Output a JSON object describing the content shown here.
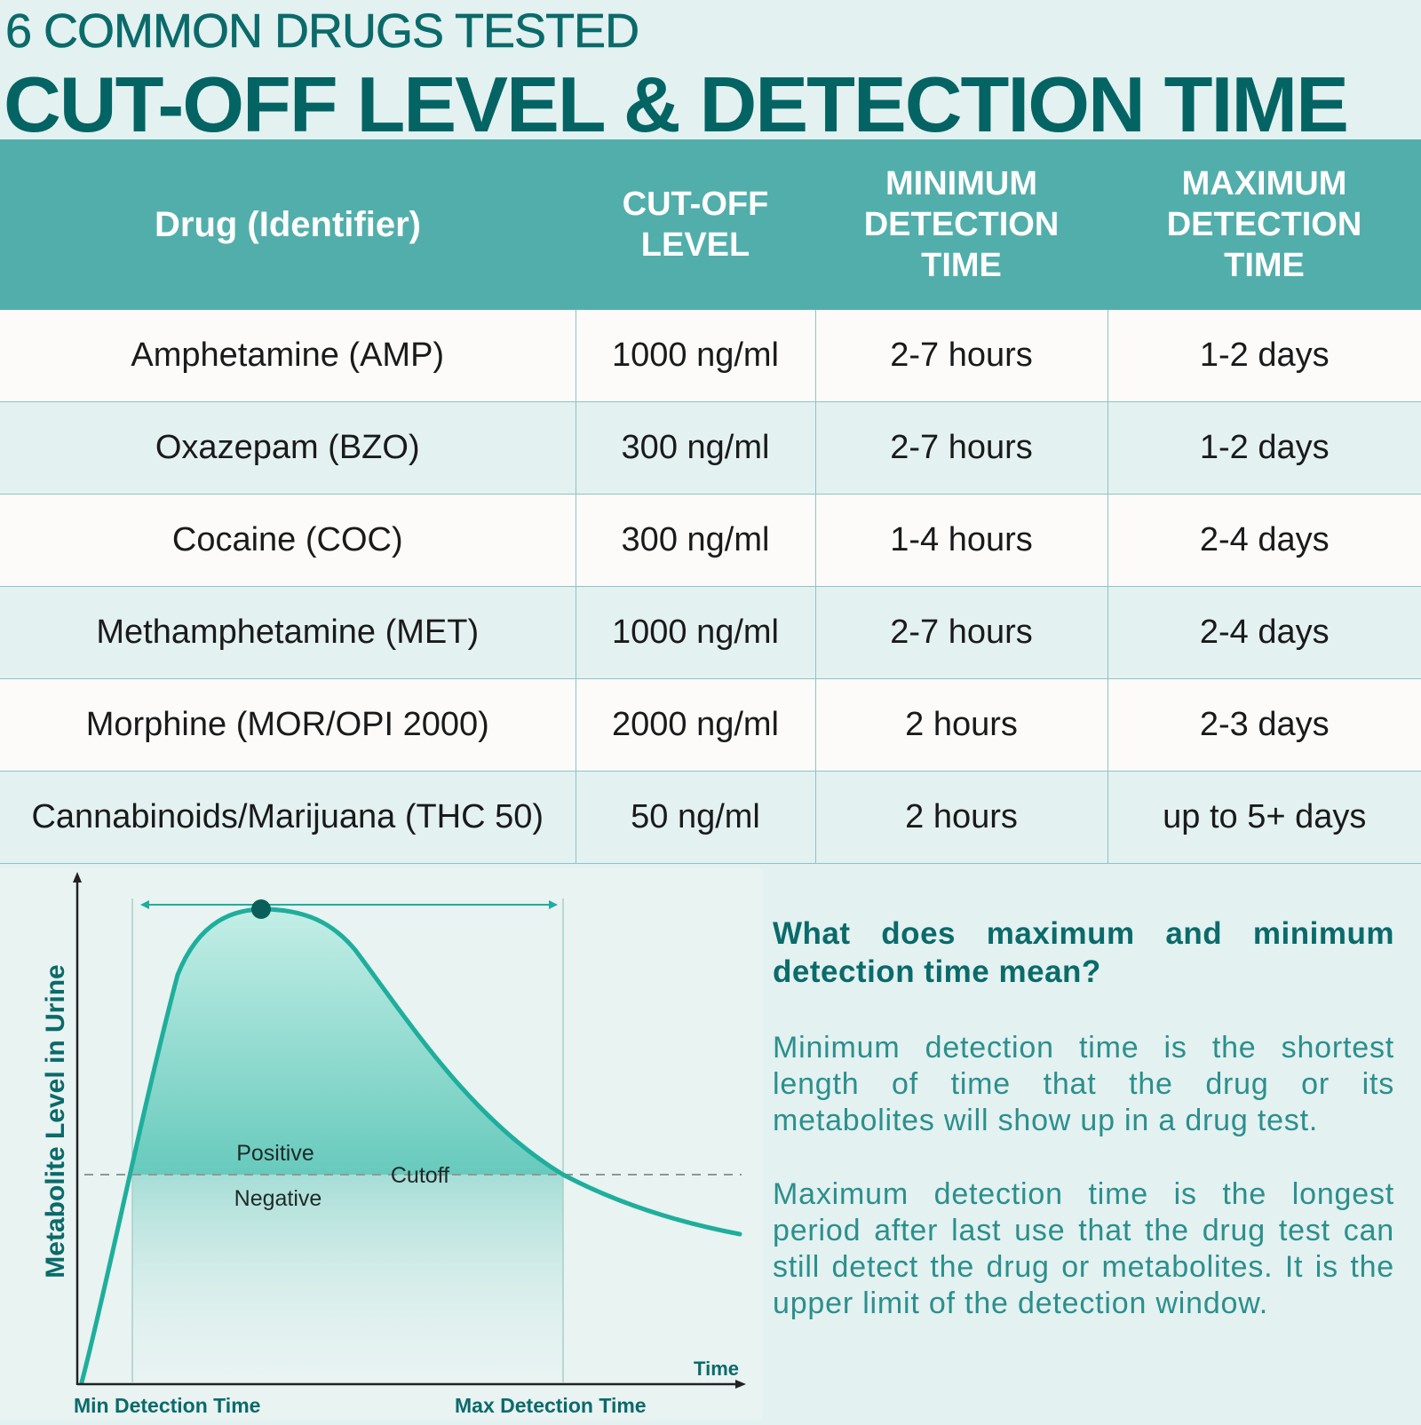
{
  "header": {
    "subtitle": "6 COMMON DRUGS TESTED",
    "title": "CUT-OFF LEVEL & DETECTION TIME"
  },
  "table": {
    "columns": [
      "Drug (Identifier)",
      "CUT-OFF\nLEVEL",
      "MINIMUM\nDETECTION\nTIME",
      "MAXIMUM\nDETECTION\nTIME"
    ],
    "rows": [
      [
        "Amphetamine (AMP)",
        "1000 ng/ml",
        "2-7 hours",
        "1-2 days"
      ],
      [
        "Oxazepam (BZO)",
        "300 ng/ml",
        "2-7 hours",
        "1-2 days"
      ],
      [
        "Cocaine (COC)",
        "300 ng/ml",
        "1-4 hours",
        "2-4 days"
      ],
      [
        "Methamphetamine (MET)",
        "1000 ng/ml",
        "2-7 hours",
        "2-4 days"
      ],
      [
        "Morphine (MOR/OPI 2000)",
        "2000 ng/ml",
        "2 hours",
        "2-3 days"
      ],
      [
        "Cannabinoids/Marijuana (THC 50)",
        "50 ng/ml",
        "2 hours",
        "up to 5+ days"
      ]
    ]
  },
  "diagram": {
    "y_axis_label": "Metabolite Level in Urine",
    "x_axis_label": "Time",
    "positive_label": "Positive",
    "negative_label": "Negative",
    "cutoff_label": "Cutoff",
    "min_label": "Min Detection Time",
    "max_label": "Max Detection Time"
  },
  "info": {
    "question": "What does maximum and minimum detection time mean?",
    "min_text": "Minimum detection time is the shortest length of time that the drug or its metabolites will show up in a drug test.",
    "max_text": "Maximum detection time is the longest period after last use that the drug test can still detect the drug or metabolites. It is the upper limit of the detection window."
  },
  "colors": {
    "brand_dark": "#046464",
    "header_bg": "#52aeab",
    "curve": "#1fae9c",
    "text_accent": "#2c8f8c"
  }
}
